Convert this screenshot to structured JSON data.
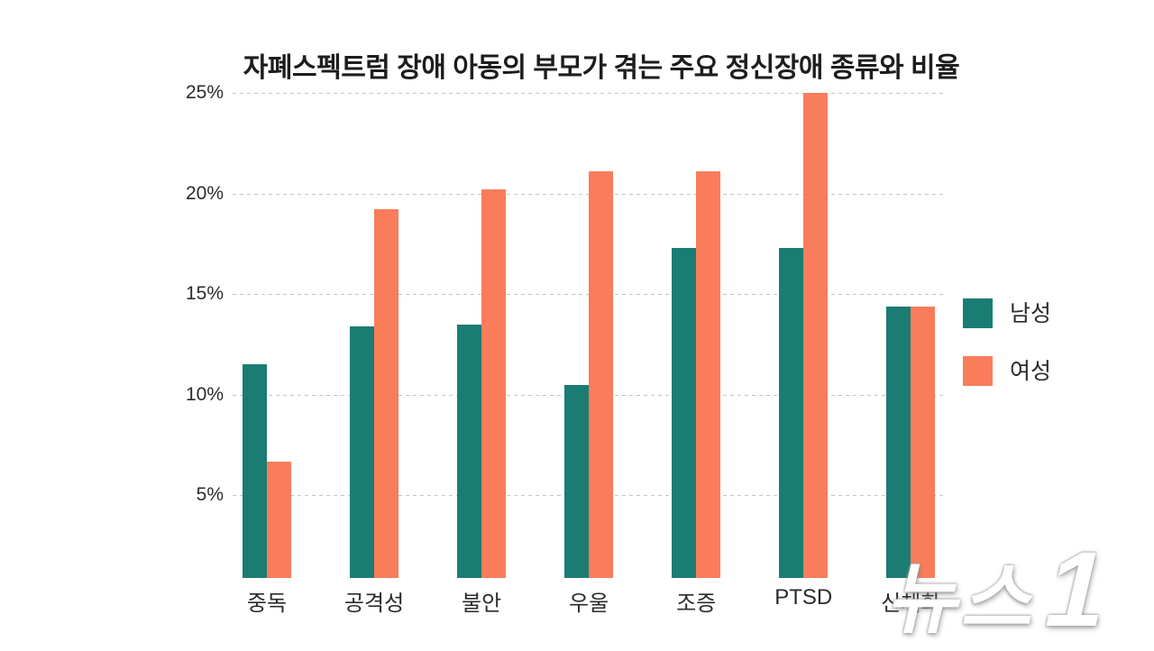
{
  "page": {
    "background": "#ffffff"
  },
  "chart_data": {
    "type": "bar",
    "title": "자폐스펙트럼 장애 아동의 부모가 겪는 주요 정신장애 종류와 비율",
    "categories": [
      "중독",
      "공격성",
      "불안",
      "우울",
      "조증",
      "PTSD",
      "신체화"
    ],
    "series": [
      {
        "name": "남성",
        "color": "#1B7C74",
        "values": [
          11.5,
          13.4,
          13.5,
          10.5,
          17.3,
          17.3,
          14.4
        ]
      },
      {
        "name": "여성",
        "color": "#F97D5B",
        "values": [
          6.7,
          19.2,
          20.2,
          21.1,
          21.1,
          25.0,
          14.4
        ]
      }
    ],
    "xlabel": "",
    "ylabel": "",
    "yticks": [
      5,
      10,
      15,
      20,
      25
    ],
    "ytick_suffix": "%",
    "ylim": [
      0.9,
      25
    ],
    "grid": "horizontal-dashed",
    "gridline_color": "#c6c6c6",
    "legend_position": "right"
  },
  "watermark": {
    "text": "뉴스1",
    "part_main": "뉴스",
    "part_digit": "1",
    "color": "#ffffff"
  }
}
